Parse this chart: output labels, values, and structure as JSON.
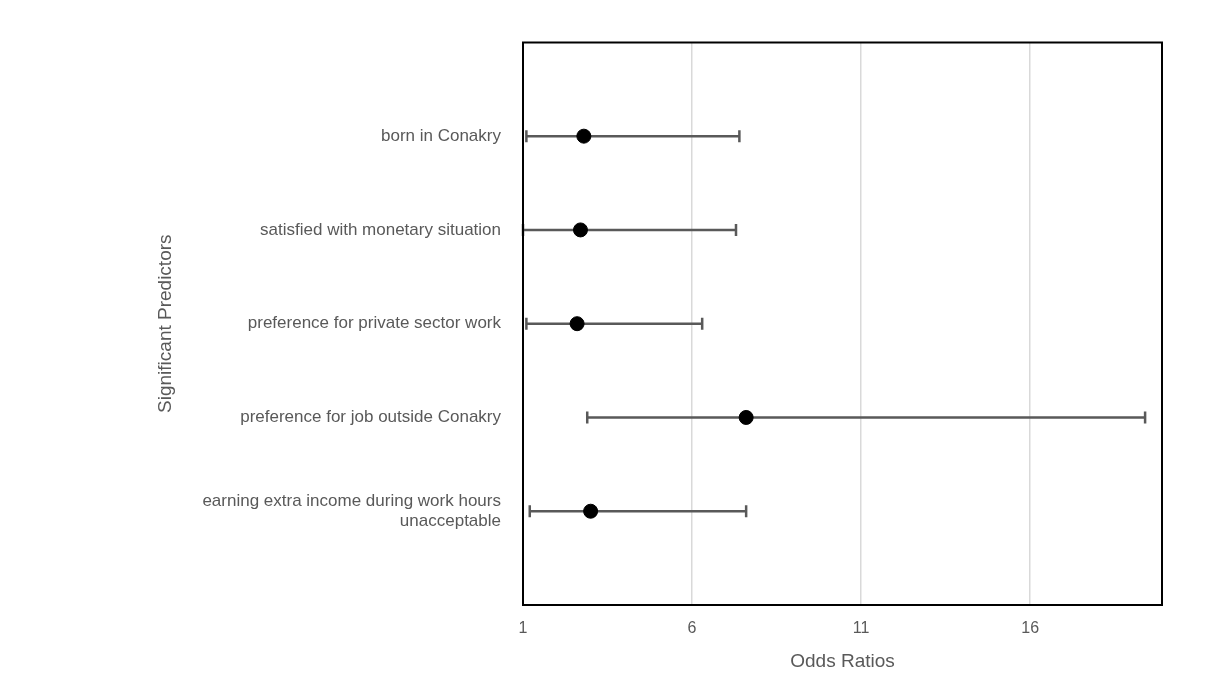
{
  "chart_data": {
    "type": "scatter",
    "xlabel": "Odds Ratios",
    "ylabel": "Significant Predictors",
    "categories": [
      "born in Conakry",
      "satisfied with monetary situation",
      "preference for private sector work",
      "preference for job outside Conakry",
      "earning extra income during work hours unacceptable"
    ],
    "orientation": "horizontal",
    "color": "#000000",
    "values": [
      2.8,
      2.7,
      2.6,
      7.6,
      3.0
    ],
    "errors": [
      [
        1.1,
        7.4
      ],
      [
        1.0,
        7.3
      ],
      [
        1.1,
        6.3
      ],
      [
        2.9,
        19.4
      ],
      [
        1.2,
        7.6
      ]
    ],
    "xlim": [
      1,
      19.9
    ],
    "xticks": [
      1,
      6,
      11,
      16
    ],
    "grid": "x",
    "marker": "circle",
    "legend": false
  }
}
